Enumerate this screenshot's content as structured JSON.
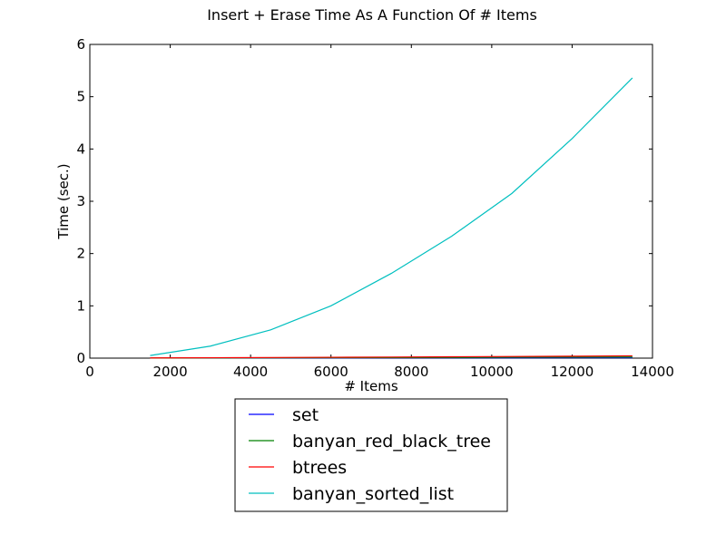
{
  "chart_data": {
    "type": "line",
    "title": "Insert + Erase Time As A Function Of # Items",
    "xlabel": "# Items",
    "ylabel": "Time (sec.)",
    "xlim": [
      0,
      14000
    ],
    "ylim": [
      0,
      6
    ],
    "xticks": [
      0,
      2000,
      4000,
      6000,
      8000,
      10000,
      12000,
      14000
    ],
    "yticks": [
      0,
      1,
      2,
      3,
      4,
      5,
      6
    ],
    "grid": false,
    "legend_position": "below-center",
    "x": [
      1500,
      3000,
      4500,
      6000,
      7500,
      9000,
      10500,
      12000,
      13500
    ],
    "series": [
      {
        "name": "set",
        "color": "#0000ff",
        "values": [
          0.001,
          0.002,
          0.003,
          0.004,
          0.005,
          0.006,
          0.007,
          0.008,
          0.009
        ]
      },
      {
        "name": "banyan_red_black_tree",
        "color": "#008000",
        "values": [
          0.002,
          0.004,
          0.006,
          0.008,
          0.01,
          0.013,
          0.016,
          0.019,
          0.022
        ]
      },
      {
        "name": "btrees",
        "color": "#ff0000",
        "values": [
          0.004,
          0.008,
          0.012,
          0.016,
          0.021,
          0.026,
          0.031,
          0.037,
          0.044
        ]
      },
      {
        "name": "banyan_sorted_list",
        "color": "#00bfbf",
        "values": [
          0.05,
          0.23,
          0.54,
          1.0,
          1.62,
          2.33,
          3.15,
          4.2,
          5.36
        ]
      }
    ]
  }
}
